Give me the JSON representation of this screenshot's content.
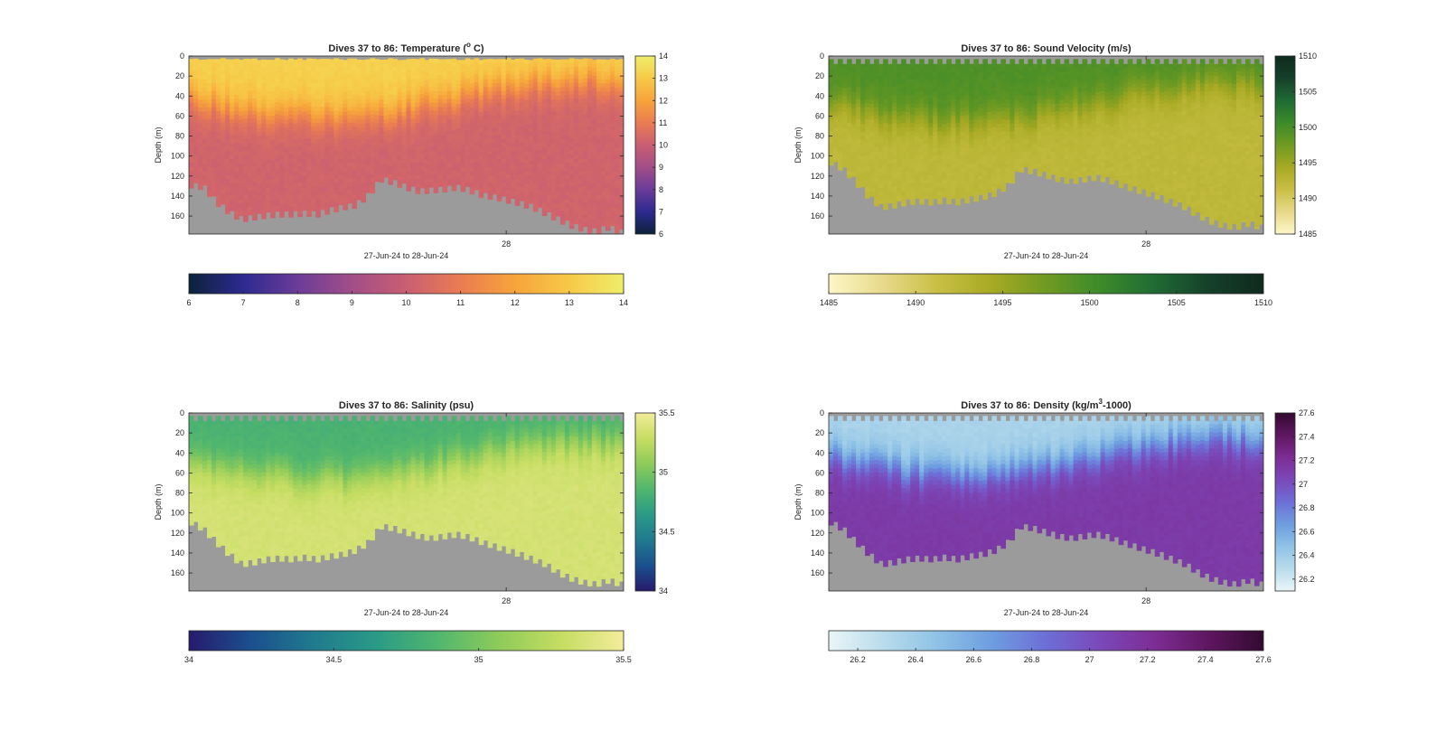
{
  "figure": {
    "colors": {
      "seafloor": "#9b9b9b",
      "axis": "#262626",
      "background": "#ffffff"
    }
  },
  "chart_data": [
    {
      "type": "heatmap",
      "title_prefix": "Dives 37 to 86: Temperature (",
      "title_sup": "o",
      "title_suffix": " C)",
      "ylabel": "Depth (m)",
      "xlabel": "27-Jun-24 to 28-Jun-24",
      "x_tick_labels": [
        "28"
      ],
      "y_ticks": [
        0,
        20,
        40,
        60,
        80,
        100,
        120,
        140,
        160
      ],
      "ylim": [
        0,
        178
      ],
      "clim": [
        6,
        14
      ],
      "colorbar_ticks": [
        "6",
        "7",
        "8",
        "9",
        "10",
        "11",
        "12",
        "13",
        "14"
      ],
      "colorbar_tick_values": [
        6,
        7,
        8,
        9,
        10,
        11,
        12,
        13,
        14
      ],
      "colormap": [
        "#0b2239",
        "#2d2a8f",
        "#6b3c99",
        "#a24e88",
        "#c95e72",
        "#ea7c52",
        "#f7a43b",
        "#f7c948",
        "#eeee6a"
      ],
      "surface_value": 13.2,
      "deep_value": 10.2,
      "thermocline_depth": 40,
      "seafloor_depth_m": [
        128,
        130,
        145,
        155,
        162,
        160,
        158,
        157,
        157,
        156,
        157,
        153,
        150,
        148,
        138,
        122,
        125,
        130,
        134,
        133,
        132,
        130,
        133,
        138,
        140,
        143,
        146,
        150,
        156,
        162,
        168,
        172,
        174,
        170,
        175
      ]
    },
    {
      "type": "heatmap",
      "title_prefix": "Dives 37 to 86: Sound Velocity (m/s)",
      "title_sup": "",
      "title_suffix": "",
      "ylabel": "Depth (m)",
      "xlabel": "27-Jun-24 to 28-Jun-24",
      "x_tick_labels": [
        "28"
      ],
      "y_ticks": [
        0,
        20,
        40,
        60,
        80,
        100,
        120,
        140,
        160
      ],
      "ylim": [
        0,
        178
      ],
      "clim": [
        1485,
        1510
      ],
      "colorbar_ticks": [
        "1485",
        "1490",
        "1495",
        "1500",
        "1505",
        "1510"
      ],
      "colorbar_tick_values": [
        1485,
        1490,
        1495,
        1500,
        1505,
        1510
      ],
      "colormap": [
        "#fdf7c7",
        "#e7d98a",
        "#c9bf45",
        "#a7a923",
        "#6f9a22",
        "#3c8b2a",
        "#1f6b34",
        "#15402a",
        "#0f2a1e"
      ],
      "surface_value": 1499.5,
      "deep_value": 1492.3,
      "thermocline_depth": 45,
      "seafloor_depth_m": [
        105,
        112,
        125,
        140,
        150,
        148,
        145,
        144,
        145,
        143,
        145,
        142,
        140,
        136,
        128,
        112,
        114,
        118,
        122,
        124,
        122,
        120,
        123,
        128,
        132,
        136,
        140,
        145,
        150,
        158,
        164,
        168,
        170,
        166,
        170
      ]
    },
    {
      "type": "heatmap",
      "title_prefix": "Dives 37 to 86: Salinity (psu)",
      "title_sup": "",
      "title_suffix": "",
      "ylabel": "Depth (m)",
      "xlabel": "27-Jun-24 to 28-Jun-24",
      "x_tick_labels": [
        "28"
      ],
      "y_ticks": [
        0,
        20,
        40,
        60,
        80,
        100,
        120,
        140,
        160
      ],
      "ylim": [
        0,
        178
      ],
      "clim": [
        34,
        35.5
      ],
      "colorbar_ticks": [
        "34",
        "34.5",
        "35",
        "35.5"
      ],
      "colorbar_tick_values": [
        34,
        34.5,
        35,
        35.5
      ],
      "colormap": [
        "#271a6c",
        "#1b4f8e",
        "#207a8e",
        "#2a9a87",
        "#50b66e",
        "#8ecb5a",
        "#c6dd62",
        "#f3ec9c"
      ],
      "surface_value": 34.82,
      "deep_value": 35.35,
      "thermocline_depth": 45,
      "seafloor_depth_m": [
        108,
        115,
        128,
        140,
        150,
        148,
        145,
        144,
        145,
        143,
        145,
        142,
        140,
        136,
        128,
        112,
        114,
        118,
        122,
        124,
        122,
        120,
        123,
        128,
        132,
        136,
        140,
        145,
        150,
        158,
        164,
        168,
        170,
        166,
        170
      ]
    },
    {
      "type": "heatmap",
      "title_prefix": "Dives 37 to 86: Density (kg/m",
      "title_sup": "3",
      "title_suffix": "-1000)",
      "ylabel": "Depth (m)",
      "xlabel": "27-Jun-24 to 28-Jun-24",
      "x_tick_labels": [
        "28"
      ],
      "y_ticks": [
        0,
        20,
        40,
        60,
        80,
        100,
        120,
        140,
        160
      ],
      "ylim": [
        0,
        178
      ],
      "clim": [
        26.1,
        27.6
      ],
      "colorbar_ticks": [
        "26.2",
        "26.4",
        "26.6",
        "26.8",
        "27",
        "27.2",
        "27.4",
        "27.6"
      ],
      "colorbar_tick_values": [
        26.2,
        26.4,
        26.6,
        26.8,
        27,
        27.2,
        27.4,
        27.6
      ],
      "colormap": [
        "#eaf5f8",
        "#b9dcec",
        "#8fc2e6",
        "#6e9de0",
        "#6d6fd6",
        "#7b48b9",
        "#7d2d94",
        "#5e1660",
        "#330a2f"
      ],
      "surface_value": 26.35,
      "deep_value": 27.13,
      "thermocline_depth": 42,
      "seafloor_depth_m": [
        108,
        115,
        128,
        140,
        150,
        148,
        145,
        144,
        145,
        143,
        145,
        142,
        140,
        136,
        128,
        112,
        114,
        118,
        122,
        124,
        122,
        120,
        123,
        128,
        132,
        136,
        140,
        145,
        150,
        158,
        164,
        168,
        170,
        166,
        170
      ]
    }
  ]
}
